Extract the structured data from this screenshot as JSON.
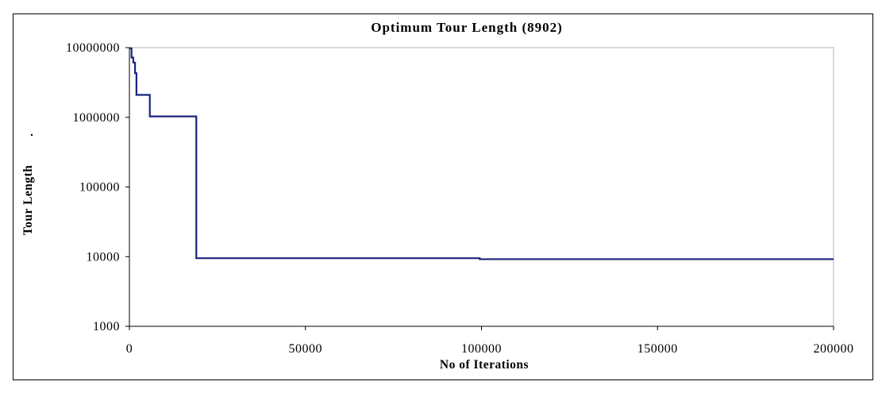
{
  "chart_data": {
    "type": "line",
    "title": "Optimum Tour Length (8902)",
    "xlabel": "No of Iterations",
    "ylabel": "Tour Length",
    "xlim": [
      0,
      200000
    ],
    "ylim": [
      1000,
      10000000
    ],
    "yscale": "log",
    "x_ticks": [
      0,
      50000,
      100000,
      150000,
      200000
    ],
    "x_tick_labels": [
      "0",
      "50000",
      "100000",
      "150000",
      "200000"
    ],
    "y_ticks": [
      1000,
      10000,
      100000,
      1000000,
      10000000
    ],
    "y_tick_labels": [
      "1000",
      "10000",
      "100000",
      "1000000",
      "10000000"
    ],
    "grid": false,
    "legend": "none",
    "series": [
      {
        "color": "#1a237e",
        "step": true,
        "x": [
          0,
          600,
          1100,
          1600,
          2000,
          5800,
          19000,
          99500,
          200000
        ],
        "y": [
          9800000,
          7200000,
          6100000,
          4300000,
          2100000,
          1030000,
          9500,
          9200,
          9200
        ]
      }
    ]
  }
}
